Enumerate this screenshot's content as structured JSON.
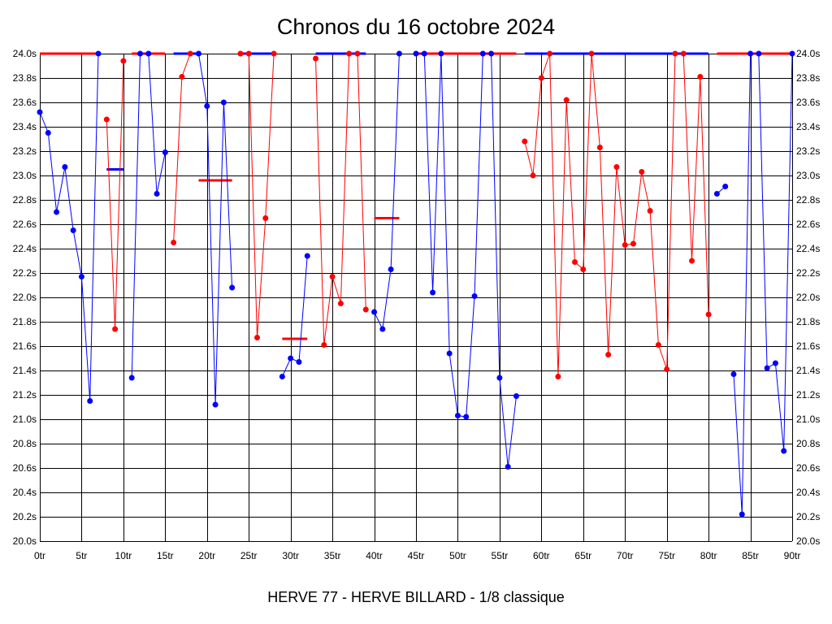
{
  "chart_data": {
    "type": "line",
    "title": "Chronos du 16 octobre 2024",
    "footer": "HERVE 77 - HERVE BILLARD - 1/8 classique",
    "xlim": [
      0,
      90
    ],
    "ylim": [
      20.0,
      24.0
    ],
    "x_ticks": [
      "0tr",
      "5tr",
      "10tr",
      "15tr",
      "20tr",
      "25tr",
      "30tr",
      "35tr",
      "40tr",
      "45tr",
      "50tr",
      "55tr",
      "60tr",
      "65tr",
      "70tr",
      "75tr",
      "80tr",
      "85tr",
      "90tr"
    ],
    "y_ticks": [
      "20.0s",
      "20.2s",
      "20.4s",
      "20.6s",
      "20.8s",
      "21.0s",
      "21.2s",
      "21.4s",
      "21.6s",
      "21.8s",
      "22.0s",
      "22.2s",
      "22.4s",
      "22.6s",
      "22.8s",
      "23.0s",
      "23.2s",
      "23.4s",
      "23.6s",
      "23.8s",
      "24.0s"
    ],
    "grid": true,
    "colors": {
      "blue": "#0000ff",
      "red": "#ff0000",
      "grid": "#000000"
    },
    "segments": [
      {
        "color": "blue",
        "points": [
          [
            0,
            23.52
          ],
          [
            1,
            23.35
          ],
          [
            2,
            22.7
          ],
          [
            3,
            23.07
          ],
          [
            4,
            22.55
          ],
          [
            5,
            22.17
          ],
          [
            6,
            21.15
          ],
          [
            7,
            24.0
          ]
        ]
      },
      {
        "color": "red",
        "points": [
          [
            8,
            23.46
          ],
          [
            9,
            21.74
          ],
          [
            10,
            23.94
          ]
        ]
      },
      {
        "color": "blue",
        "points": [
          [
            11,
            21.34
          ],
          [
            12,
            24.0
          ],
          [
            13,
            24.0
          ],
          [
            14,
            22.85
          ],
          [
            15,
            23.19
          ]
        ]
      },
      {
        "color": "red",
        "points": [
          [
            16,
            22.45
          ],
          [
            17,
            23.81
          ],
          [
            18,
            24.0
          ]
        ]
      },
      {
        "color": "blue",
        "points": [
          [
            19,
            24.0
          ],
          [
            20,
            23.57
          ],
          [
            21,
            21.12
          ],
          [
            22,
            23.6
          ],
          [
            23,
            22.08
          ]
        ]
      },
      {
        "color": "red",
        "points": [
          [
            24,
            24.0
          ],
          [
            25,
            24.0
          ],
          [
            26,
            21.67
          ],
          [
            27,
            22.65
          ],
          [
            28,
            24.0
          ]
        ]
      },
      {
        "color": "blue",
        "points": [
          [
            29,
            21.35
          ],
          [
            30,
            21.5
          ],
          [
            31,
            21.47
          ],
          [
            32,
            22.34
          ]
        ]
      },
      {
        "color": "red",
        "points": [
          [
            33,
            23.96
          ],
          [
            34,
            21.61
          ],
          [
            35,
            22.17
          ],
          [
            36,
            21.95
          ],
          [
            37,
            24.0
          ],
          [
            38,
            24.0
          ],
          [
            39,
            21.9
          ]
        ]
      },
      {
        "color": "blue",
        "points": [
          [
            40,
            21.88
          ],
          [
            41,
            21.74
          ],
          [
            42,
            22.23
          ],
          [
            43,
            24.0
          ]
        ]
      },
      {
        "color": "blue",
        "points": [
          [
            45,
            24.0
          ],
          [
            46,
            24.0
          ],
          [
            47,
            22.04
          ],
          [
            48,
            24.0
          ],
          [
            49,
            21.54
          ],
          [
            50,
            21.03
          ],
          [
            51,
            21.02
          ],
          [
            52,
            22.01
          ],
          [
            53,
            24.0
          ],
          [
            54,
            24.0
          ],
          [
            55,
            21.34
          ],
          [
            56,
            20.61
          ],
          [
            57,
            21.19
          ]
        ]
      },
      {
        "color": "red",
        "points": [
          [
            58,
            23.28
          ],
          [
            59,
            23.0
          ],
          [
            60,
            23.8
          ],
          [
            61,
            24.0
          ],
          [
            62,
            21.35
          ],
          [
            63,
            23.62
          ],
          [
            64,
            22.29
          ],
          [
            65,
            22.23
          ],
          [
            66,
            24.0
          ],
          [
            67,
            23.23
          ],
          [
            68,
            21.53
          ],
          [
            69,
            23.07
          ],
          [
            70,
            22.43
          ],
          [
            71,
            22.44
          ],
          [
            72,
            23.03
          ],
          [
            73,
            22.71
          ],
          [
            74,
            21.61
          ],
          [
            75,
            21.41
          ],
          [
            76,
            24.0
          ],
          [
            77,
            24.0
          ],
          [
            78,
            22.3
          ],
          [
            79,
            23.81
          ],
          [
            80,
            21.86
          ]
        ]
      },
      {
        "color": "blue",
        "points": [
          [
            81,
            22.85
          ],
          [
            82,
            22.91
          ]
        ]
      },
      {
        "color": "blue",
        "points": [
          [
            83,
            21.37
          ],
          [
            84,
            20.22
          ],
          [
            85,
            24.0
          ],
          [
            86,
            24.0
          ],
          [
            87,
            21.42
          ],
          [
            88,
            21.46
          ],
          [
            89,
            20.74
          ],
          [
            90,
            24.0
          ]
        ]
      }
    ],
    "averages": [
      {
        "color": "red",
        "x": [
          0,
          7
        ],
        "y": 24.0
      },
      {
        "color": "blue",
        "x": [
          8,
          10
        ],
        "y": 23.05
      },
      {
        "color": "red",
        "x": [
          11,
          15
        ],
        "y": 24.0
      },
      {
        "color": "blue",
        "x": [
          16,
          19
        ],
        "y": 24.0
      },
      {
        "color": "red",
        "x": [
          19,
          23
        ],
        "y": 22.96
      },
      {
        "color": "blue",
        "x": [
          24,
          28
        ],
        "y": 24.0
      },
      {
        "color": "red",
        "x": [
          29,
          32
        ],
        "y": 21.66
      },
      {
        "color": "blue",
        "x": [
          33,
          39
        ],
        "y": 24.0
      },
      {
        "color": "red",
        "x": [
          40,
          43
        ],
        "y": 22.65
      },
      {
        "color": "red",
        "x": [
          45,
          57
        ],
        "y": 24.0
      },
      {
        "color": "blue",
        "x": [
          58,
          80
        ],
        "y": 24.0
      },
      {
        "color": "red",
        "x": [
          81,
          90
        ],
        "y": 24.0
      }
    ]
  }
}
